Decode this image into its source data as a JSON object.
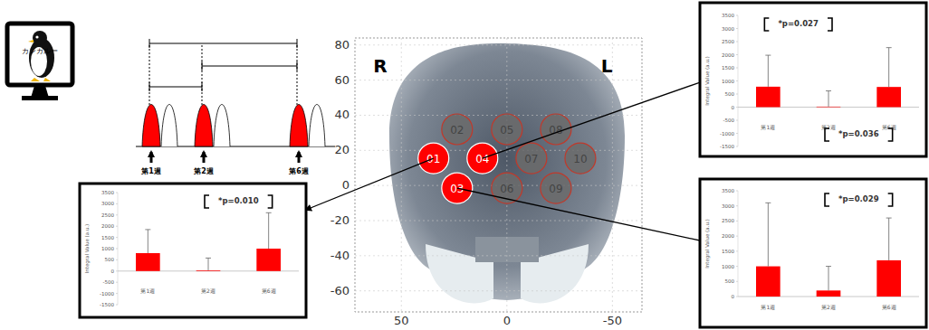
{
  "chart_data": [
    {
      "type": "bar",
      "y_label": "Integral Value (a.u.)",
      "categories": [
        "第1週",
        "第2週",
        "第6週"
      ],
      "values": [
        800,
        30,
        1000
      ],
      "error": [
        1050,
        550,
        1600
      ],
      "color": "#ff0000",
      "ylim": [
        -1500,
        3500
      ],
      "yticks": [
        -1500,
        -1000,
        -500,
        0,
        500,
        1000,
        1500,
        2000,
        2500,
        3000,
        3500
      ],
      "annotations": [
        {
          "text": "*p=0.010",
          "between": [
            "第2週",
            "第6週"
          ],
          "side": "above"
        }
      ]
    },
    {
      "type": "bar",
      "y_label": "Integral Value (a.u.)",
      "categories": [
        "第1週",
        "第2週",
        "第6週"
      ],
      "values": [
        780,
        20,
        770
      ],
      "error": [
        1200,
        600,
        1500
      ],
      "color": "#ff0000",
      "ylim": [
        -1500,
        3500
      ],
      "yticks": [
        -1500,
        -1000,
        -500,
        0,
        500,
        1000,
        1500,
        2000,
        2500,
        3000,
        3500
      ],
      "annotations": [
        {
          "text": "*p=0.027",
          "between": [
            "第1週",
            "第2週"
          ],
          "side": "above"
        },
        {
          "text": "*p=0.036",
          "between": [
            "第2週",
            "第6週"
          ],
          "side": "below"
        }
      ]
    },
    {
      "type": "bar",
      "y_label": "Integral Value (a.u.)",
      "categories": [
        "第1週",
        "第2週",
        "第6週"
      ],
      "values": [
        1000,
        200,
        1200
      ],
      "error": [
        2100,
        800,
        1400
      ],
      "color": "#ff0000",
      "ylim": [
        0,
        3500
      ],
      "yticks": [
        0,
        500,
        1000,
        1500,
        2000,
        2500,
        3000,
        3500
      ],
      "annotations": [
        {
          "text": "*p=0.029",
          "between": [
            "第2週",
            "第6週"
          ],
          "side": "above"
        }
      ]
    },
    {
      "type": "scatter",
      "labels": [
        "01",
        "02",
        "03",
        "04",
        "05",
        "06",
        "07",
        "08",
        "09",
        "10"
      ],
      "x": [
        34.8,
        23.6,
        23.6,
        11.6,
        0,
        0,
        -11.6,
        -23.2,
        -23.2,
        -34.8
      ],
      "values": [
        15.5,
        32,
        -1.5,
        15.5,
        32,
        -1.5,
        15.5,
        32,
        -1.5,
        15.5
      ],
      "colors": [
        "#ff0000",
        "#6b6b6b",
        "#ff0000",
        "#ff0000",
        "#6b6b6b",
        "#6b6b6b",
        "#6b6b6b",
        "#6b6b6b",
        "#6b6b6b",
        "#6b6b6b"
      ],
      "xlim": [
        72,
        -64
      ],
      "ylim": [
        -72,
        84
      ],
      "xticks": [
        50,
        0,
        -50
      ],
      "yticks": [
        80,
        60,
        40,
        20,
        0,
        -20,
        -40,
        -60
      ],
      "annotations": [
        "R",
        "L"
      ]
    }
  ],
  "diagram": {
    "monitor_text": "カンガルー",
    "timeline_labels": [
      "第1週",
      "第2週",
      "第6週"
    ]
  }
}
